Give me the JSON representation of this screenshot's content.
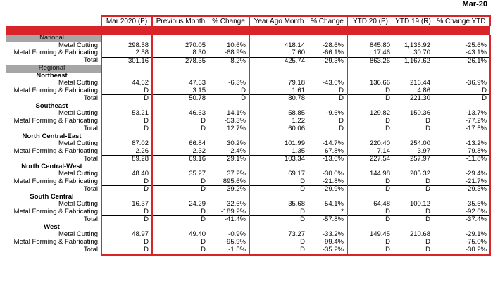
{
  "page_title": "Mar-20",
  "columns": [
    "Mar 2020 (P)",
    "Previous Month",
    "% Change",
    "Year Ago Month",
    "% Change",
    "YTD 20 (P)",
    "YTD 19 (R)",
    "% Change YTD"
  ],
  "national": {
    "label": "National",
    "rows": [
      {
        "label": "Metal Cutting",
        "values": [
          "298.58",
          "270.05",
          "10.6%",
          "418.14",
          "-28.6%",
          "845.80",
          "1,136.92",
          "-25.6%"
        ]
      },
      {
        "label": "Metal Forming & Fabricating",
        "values": [
          "2.58",
          "8.30",
          "-68.9%",
          "7.60",
          "-66.1%",
          "17.46",
          "30.70",
          "-43.1%"
        ]
      },
      {
        "label": "Total",
        "values": [
          "301.16",
          "278.35",
          "8.2%",
          "425.74",
          "-29.3%",
          "863.26",
          "1,167.62",
          "-26.1%"
        ]
      }
    ]
  },
  "regional_label": "Regional",
  "regions": [
    {
      "name": "Northeast",
      "rows": [
        {
          "label": "Metal Cutting",
          "values": [
            "44.62",
            "47.63",
            "-6.3%",
            "79.18",
            "-43.6%",
            "136.66",
            "216.44",
            "-36.9%"
          ]
        },
        {
          "label": "Metal Forming & Fabricating",
          "values": [
            "D",
            "3.15",
            "D",
            "1.61",
            "D",
            "D",
            "4.86",
            "D"
          ]
        },
        {
          "label": "Total",
          "values": [
            "D",
            "50.78",
            "D",
            "80.78",
            "D",
            "D",
            "221.30",
            "D"
          ]
        }
      ]
    },
    {
      "name": "Southeast",
      "rows": [
        {
          "label": "Metal Cutting",
          "values": [
            "53.21",
            "46.63",
            "14.1%",
            "58.85",
            "-9.6%",
            "129.82",
            "150.36",
            "-13.7%"
          ]
        },
        {
          "label": "Metal Forming & Fabricating",
          "values": [
            "D",
            "D",
            "-53.3%",
            "1.22",
            "D",
            "D",
            "D",
            "-77.2%"
          ]
        },
        {
          "label": "Total",
          "values": [
            "D",
            "D",
            "12.7%",
            "60.06",
            "D",
            "D",
            "D",
            "-17.5%"
          ]
        }
      ]
    },
    {
      "name": "North Central-East",
      "rows": [
        {
          "label": "Metal Cutting",
          "values": [
            "87.02",
            "66.84",
            "30.2%",
            "101.99",
            "-14.7%",
            "220.40",
            "254.00",
            "-13.2%"
          ]
        },
        {
          "label": "Metal Forming & Fabricating",
          "values": [
            "2.26",
            "2.32",
            "-2.4%",
            "1.35",
            "67.8%",
            "7.14",
            "3.97",
            "79.8%"
          ]
        },
        {
          "label": "Total",
          "values": [
            "89.28",
            "69.16",
            "29.1%",
            "103.34",
            "-13.6%",
            "227.54",
            "257.97",
            "-11.8%"
          ]
        }
      ]
    },
    {
      "name": "North Central-West",
      "rows": [
        {
          "label": "Metal Cutting",
          "values": [
            "48.40",
            "35.27",
            "37.2%",
            "69.17",
            "-30.0%",
            "144.98",
            "205.32",
            "-29.4%"
          ]
        },
        {
          "label": "Metal Forming & Fabricating",
          "values": [
            "D",
            "D",
            "895.6%",
            "D",
            "-21.8%",
            "D",
            "D",
            "-21.7%"
          ]
        },
        {
          "label": "Total",
          "values": [
            "D",
            "D",
            "39.2%",
            "D",
            "-29.9%",
            "D",
            "D",
            "-29.3%"
          ]
        }
      ]
    },
    {
      "name": "South Central",
      "rows": [
        {
          "label": "Metal Cutting",
          "values": [
            "16.37",
            "24.29",
            "-32.6%",
            "35.68",
            "-54.1%",
            "64.48",
            "100.12",
            "-35.6%"
          ]
        },
        {
          "label": "Metal Forming & Fabricating",
          "values": [
            "D",
            "D",
            "-189.2%",
            "D",
            "*",
            "D",
            "D",
            "-92.6%"
          ]
        },
        {
          "label": "Total",
          "values": [
            "D",
            "D",
            "-41.4%",
            "D",
            "-57.8%",
            "D",
            "D",
            "-37.4%"
          ]
        }
      ]
    },
    {
      "name": "West",
      "rows": [
        {
          "label": "Metal Cutting",
          "values": [
            "48.97",
            "49.40",
            "-0.9%",
            "73.27",
            "-33.2%",
            "149.45",
            "210.68",
            "-29.1%"
          ]
        },
        {
          "label": "Metal Forming & Fabricating",
          "values": [
            "D",
            "D",
            "-95.9%",
            "D",
            "-99.4%",
            "D",
            "D",
            "-75.0%"
          ]
        },
        {
          "label": "Total",
          "values": [
            "D",
            "D",
            "-1.5%",
            "D",
            "-35.2%",
            "D",
            "D",
            "-30.2%"
          ]
        }
      ]
    }
  ],
  "colors": {
    "accent_red": "#d9252a",
    "section_gray": "#a6a6a6"
  }
}
